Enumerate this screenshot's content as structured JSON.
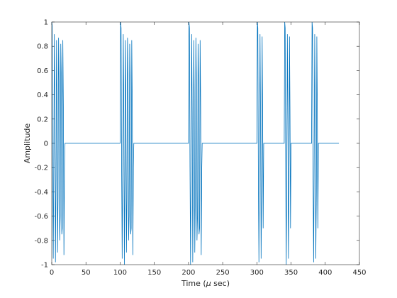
{
  "chart_data": {
    "type": "line",
    "title": "",
    "xlabel_prefix": "Time (",
    "xlabel_mu": "μ",
    "xlabel_suffix": " sec)",
    "ylabel": "Amplitude",
    "xlim": [
      0,
      450
    ],
    "ylim": [
      -1,
      1
    ],
    "xticks": [
      0,
      50,
      100,
      150,
      200,
      250,
      300,
      350,
      400,
      450
    ],
    "yticks": [
      -1,
      -0.8,
      -0.6,
      -0.4,
      -0.2,
      0,
      0.2,
      0.4,
      0.6,
      0.8,
      1
    ],
    "ytick_labels": [
      "-1",
      "-0.8",
      "-0.6",
      "-0.4",
      "-0.2",
      "0",
      "0.2",
      "0.4",
      "0.6",
      "0.8",
      "1"
    ],
    "grid": false,
    "series": [
      {
        "color": "#0072BD",
        "x": [
          0,
          0.7,
          1.4,
          2.2,
          3,
          3.8,
          4.6,
          5.4,
          6.2,
          7,
          7.7,
          8.4,
          9.2,
          10,
          10.8,
          11.6,
          12.4,
          13.2,
          14,
          14.7,
          15.4,
          16.2,
          17,
          17.8,
          18.6,
          19.4,
          20,
          100,
          100.7,
          101.4,
          102.2,
          103,
          103.8,
          104.6,
          105.4,
          106.2,
          107,
          107.7,
          108.4,
          109.2,
          110,
          110.8,
          111.6,
          112.4,
          113.2,
          114,
          114.7,
          115.4,
          116.2,
          117,
          117.8,
          118.6,
          119.4,
          120,
          200,
          200.7,
          201.4,
          202.2,
          203,
          203.8,
          204.6,
          205.4,
          206.2,
          207,
          207.7,
          208.4,
          209.2,
          210,
          210.8,
          211.6,
          212.4,
          213.2,
          214,
          214.7,
          215.4,
          216.2,
          217,
          217.8,
          218.6,
          219.4,
          220,
          300,
          300.7,
          301.4,
          302.2,
          303,
          303.8,
          304.6,
          305.4,
          306.2,
          307,
          307.7,
          308.4,
          309.2,
          310,
          340,
          340.7,
          341.4,
          342.2,
          343,
          343.8,
          344.6,
          345.4,
          346.2,
          347,
          347.7,
          348.4,
          349.2,
          350,
          380,
          380.7,
          381.4,
          382.2,
          383,
          383.8,
          384.6,
          385.4,
          386.2,
          387,
          387.7,
          388.4,
          389.2,
          390,
          420
        ],
        "y": [
          1,
          0.97,
          -0.2,
          -0.95,
          -0.15,
          0.9,
          0.25,
          -0.98,
          -0.3,
          0.85,
          0.4,
          -0.9,
          -0.45,
          0.87,
          0.5,
          -0.8,
          -0.6,
          0.82,
          0.55,
          -0.75,
          -0.7,
          0.85,
          0.3,
          -0.92,
          -0.2,
          0,
          0,
          0,
          1,
          0.95,
          -0.2,
          -0.95,
          -0.15,
          0.9,
          0.25,
          -1,
          -0.3,
          0.85,
          0.4,
          -0.9,
          -0.45,
          0.87,
          0.5,
          -0.8,
          -0.6,
          0.82,
          0.55,
          -0.75,
          -0.7,
          0.85,
          0.3,
          -0.92,
          -0.2,
          0,
          0,
          1,
          0.95,
          -0.2,
          -1,
          -0.15,
          0.9,
          0.25,
          -0.98,
          -0.3,
          0.85,
          0.4,
          -0.9,
          -0.45,
          0.87,
          0.5,
          -0.8,
          -0.6,
          0.82,
          0.55,
          -0.75,
          -0.7,
          0.85,
          0.3,
          -0.92,
          -0.2,
          0,
          0,
          1,
          0.95,
          -0.3,
          -0.98,
          -0.1,
          0.9,
          0.2,
          -0.95,
          -0.4,
          0.88,
          0.3,
          -0.7,
          0,
          0,
          1,
          0.95,
          -0.3,
          -1,
          -0.1,
          0.9,
          0.2,
          -0.95,
          -0.4,
          0.88,
          0.3,
          -0.7,
          0,
          0,
          1,
          0.95,
          -0.3,
          -0.98,
          -0.1,
          0.9,
          0.2,
          -0.95,
          -0.4,
          0.88,
          0.3,
          -0.7,
          0,
          0
        ]
      }
    ]
  }
}
